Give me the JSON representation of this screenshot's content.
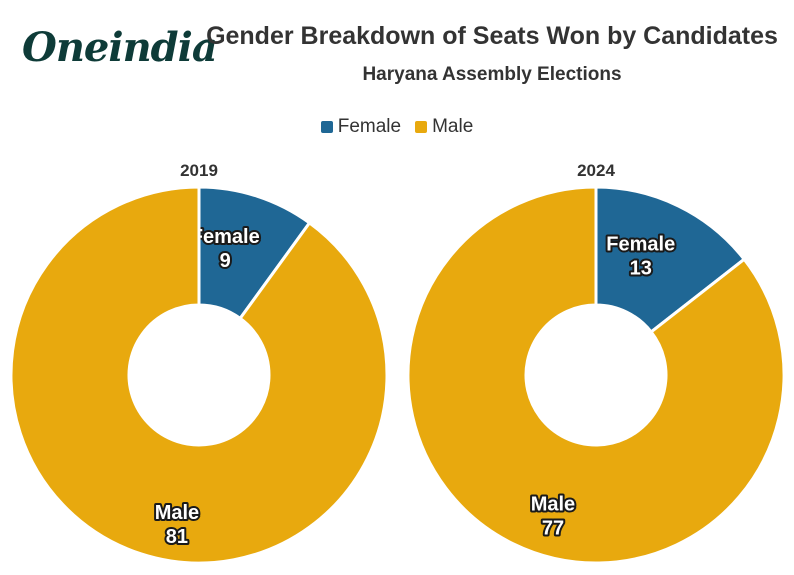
{
  "logo": {
    "text": "Oneindia"
  },
  "title": "Gender Breakdown of Seats Won by Candidates",
  "subtitle": "Haryana Assembly Elections",
  "legend": [
    {
      "label": "Female",
      "color": "#1f6795"
    },
    {
      "label": "Male",
      "color": "#e8a90e"
    }
  ],
  "chart_data": [
    {
      "type": "pie",
      "title": "2019",
      "donut": true,
      "categories": [
        "Female",
        "Male"
      ],
      "values": [
        9,
        81
      ],
      "colors": [
        "#1f6795",
        "#e8a90e"
      ]
    },
    {
      "type": "pie",
      "title": "2024",
      "donut": true,
      "categories": [
        "Female",
        "Male"
      ],
      "values": [
        13,
        77
      ],
      "colors": [
        "#1f6795",
        "#e8a90e"
      ]
    }
  ]
}
